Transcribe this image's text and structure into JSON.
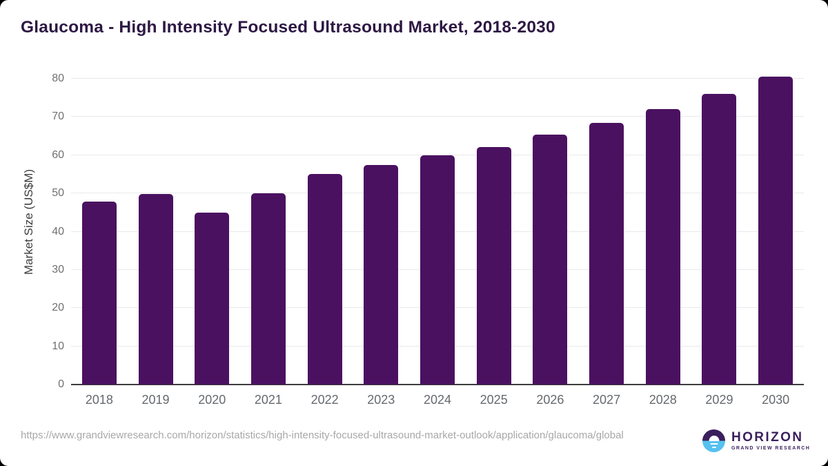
{
  "title": "Glaucoma - High Intensity Focused Ultrasound Market, 2018-2030",
  "chart_data": {
    "type": "bar",
    "title": "Glaucoma - High Intensity Focused Ultrasound Market, 2018-2030",
    "categories": [
      "2018",
      "2019",
      "2020",
      "2021",
      "2022",
      "2023",
      "2024",
      "2025",
      "2026",
      "2027",
      "2028",
      "2029",
      "2030"
    ],
    "values": [
      47.8,
      49.8,
      45.0,
      50.1,
      55.0,
      57.5,
      59.9,
      62.2,
      65.4,
      68.5,
      72.0,
      76.0,
      80.5
    ],
    "xlabel": "",
    "ylabel": "Market Size (US$M)",
    "ylim": [
      0,
      80
    ],
    "ytick_step": 10,
    "yticks": [
      0,
      10,
      20,
      30,
      40,
      50,
      60,
      70,
      80
    ],
    "grid": true,
    "legend": "none",
    "bar_color": "#4a1160"
  },
  "colors": {
    "bar": "#4a1160",
    "title_text": "#2d1843",
    "logo_purple": "#3a1f5d",
    "logo_blue": "#56c1ef"
  },
  "footer": {
    "source_url": "https://www.grandviewresearch.com/horizon/statistics/high-intensity-focused-ultrasound-market-outlook/application/glaucoma/global",
    "logo": {
      "name": "HORIZON",
      "subtitle": "GRAND VIEW RESEARCH"
    }
  }
}
